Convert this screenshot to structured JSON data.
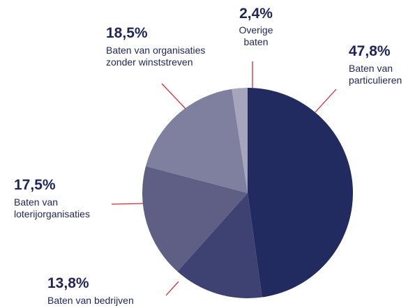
{
  "chart_data": {
    "type": "pie",
    "categories": [
      "Baten van particulieren",
      "Baten van bedrijven",
      "Baten van loterijorganisaties",
      "Baten van organisaties zonder winststreven",
      "Overige baten"
    ],
    "values": [
      47.8,
      13.8,
      17.5,
      18.5,
      2.4
    ],
    "value_labels": [
      "47,8%",
      "13,8%",
      "17,5%",
      "18,5%",
      "2,4%"
    ],
    "colors": [
      "#222b5f",
      "#3d4272",
      "#5f5f86",
      "#7f7f9f",
      "#a5a5bd"
    ]
  }
}
